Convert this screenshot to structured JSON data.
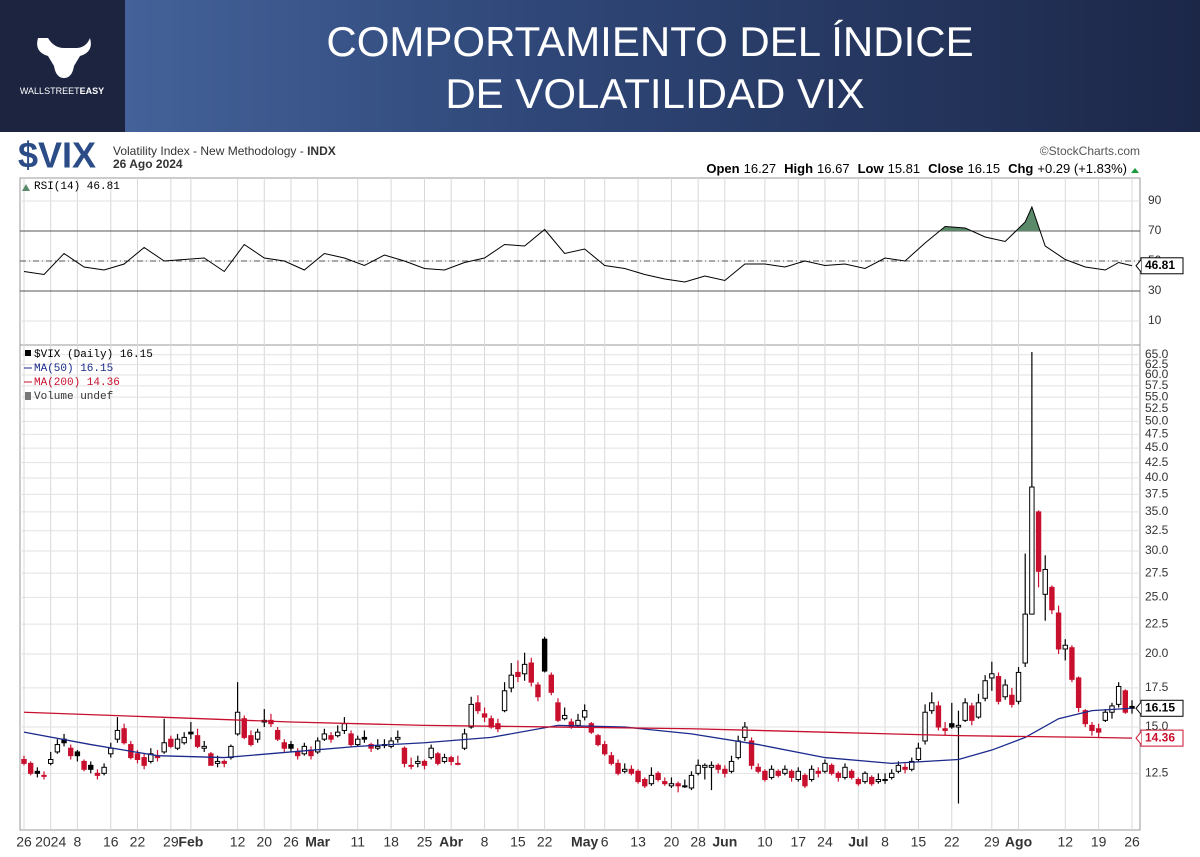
{
  "header": {
    "title_lines": [
      "COMPORTAMIENTO DEL ÍNDICE",
      "DE VOLATILIDAD VIX"
    ],
    "logo_text": "WALLSTREET",
    "logo_text_bold": "EASY"
  },
  "chart_data": {
    "type": "candlestick",
    "symbol": "$VIX",
    "description": "Volatility Index - New Methodology - ",
    "exchange": "INDX",
    "date": "26 Ago 2024",
    "source": "©StockCharts.com",
    "quote": [
      {
        "label": "Open",
        "value": 16.27
      },
      {
        "label": "High",
        "value": 16.67
      },
      {
        "label": "Low",
        "value": 15.81
      },
      {
        "label": "Close",
        "value": 16.15
      },
      {
        "label": "Chg",
        "value": "+0.29 (+1.83%)"
      }
    ],
    "legend": "$VIX (Daily) 16.15",
    "volume_label": "Volume undef",
    "up_color": "#000000",
    "down_color": "#c8102e",
    "log": true,
    "grid": true,
    "xlim": [
      0,
      166
    ],
    "xticks": [
      {
        "value": 0,
        "label": "26"
      },
      {
        "value": 4,
        "label": "2024"
      },
      {
        "value": 8,
        "label": "8"
      },
      {
        "value": 13,
        "label": "16"
      },
      {
        "value": 17,
        "label": "22"
      },
      {
        "value": 22,
        "label": "29"
      },
      {
        "value": 25,
        "label": "Feb"
      },
      {
        "value": 32,
        "label": "12"
      },
      {
        "value": 36,
        "label": "20"
      },
      {
        "value": 40,
        "label": "26"
      },
      {
        "value": 44,
        "label": "Mar"
      },
      {
        "value": 50,
        "label": "11"
      },
      {
        "value": 55,
        "label": "18"
      },
      {
        "value": 60,
        "label": "25"
      },
      {
        "value": 64,
        "label": "Abr"
      },
      {
        "value": 69,
        "label": "8"
      },
      {
        "value": 74,
        "label": "15"
      },
      {
        "value": 78,
        "label": "22"
      },
      {
        "value": 84,
        "label": "May"
      },
      {
        "value": 87,
        "label": "6"
      },
      {
        "value": 92,
        "label": "13"
      },
      {
        "value": 97,
        "label": "20"
      },
      {
        "value": 101,
        "label": "28"
      },
      {
        "value": 105,
        "label": "Jun"
      },
      {
        "value": 111,
        "label": "10"
      },
      {
        "value": 116,
        "label": "17"
      },
      {
        "value": 120,
        "label": "24"
      },
      {
        "value": 125,
        "label": "Jul"
      },
      {
        "value": 129,
        "label": "8"
      },
      {
        "value": 134,
        "label": "15"
      },
      {
        "value": 139,
        "label": "22"
      },
      {
        "value": 145,
        "label": "29"
      },
      {
        "value": 149,
        "label": "Ago"
      },
      {
        "value": 156,
        "label": "12"
      },
      {
        "value": 161,
        "label": "19"
      },
      {
        "value": 166,
        "label": "26"
      }
    ],
    "ylim": [
      10,
      67
    ],
    "yticks": [
      12.5,
      {
        "value": 15,
        "label": "15.0"
      },
      17.5,
      {
        "value": 20,
        "label": "20.0"
      },
      22.5,
      {
        "value": 25,
        "label": "25.0"
      },
      27.5,
      {
        "value": 30,
        "label": "30.0"
      },
      32.5,
      {
        "value": 35,
        "label": "35.0"
      },
      37.5,
      {
        "value": 40,
        "label": "40.0"
      },
      42.5,
      {
        "value": 45,
        "label": "45.0"
      },
      47.5,
      {
        "value": 50,
        "label": "50.0"
      },
      52.5,
      {
        "value": 55,
        "label": "55.0"
      },
      57.5,
      {
        "value": 60,
        "label": "60.0"
      },
      62.5,
      {
        "value": 65,
        "label": "65.0"
      }
    ],
    "candles": [
      [
        13.2,
        13.4,
        12.9,
        13.0
      ],
      [
        13.0,
        13.1,
        12.4,
        12.5
      ],
      [
        12.6,
        12.8,
        12.3,
        12.5
      ],
      [
        12.4,
        12.6,
        12.2,
        12.4
      ],
      [
        13.0,
        13.6,
        12.9,
        13.2
      ],
      [
        13.6,
        14.3,
        13.5,
        14.0
      ],
      [
        14.3,
        14.6,
        13.9,
        14.1
      ],
      [
        13.8,
        14.0,
        13.2,
        13.4
      ],
      [
        13.6,
        13.7,
        13.1,
        13.4
      ],
      [
        13.1,
        13.2,
        12.6,
        12.7
      ],
      [
        12.9,
        13.1,
        12.5,
        12.7
      ],
      [
        12.5,
        12.7,
        12.2,
        12.4
      ],
      [
        12.5,
        13.0,
        12.4,
        12.8
      ],
      [
        13.5,
        14.1,
        13.3,
        13.8
      ],
      [
        14.3,
        15.6,
        14.1,
        14.8
      ],
      [
        14.9,
        15.2,
        14.0,
        14.1
      ],
      [
        14.0,
        14.2,
        13.2,
        13.3
      ],
      [
        13.5,
        13.7,
        13.0,
        13.2
      ],
      [
        13.3,
        13.5,
        12.7,
        12.9
      ],
      [
        13.1,
        13.8,
        13.0,
        13.5
      ],
      [
        13.4,
        13.7,
        13.1,
        13.3
      ],
      [
        13.6,
        15.5,
        13.5,
        14.1
      ],
      [
        14.3,
        14.5,
        13.8,
        13.9
      ],
      [
        13.8,
        14.6,
        13.7,
        14.3
      ],
      [
        14.1,
        14.7,
        14.0,
        14.4
      ],
      [
        14.7,
        15.3,
        14.3,
        14.6
      ],
      [
        14.5,
        14.9,
        13.8,
        13.9
      ],
      [
        13.8,
        14.2,
        13.6,
        13.9
      ],
      [
        13.5,
        13.6,
        12.9,
        12.9
      ],
      [
        13.0,
        13.4,
        12.8,
        13.1
      ],
      [
        13.1,
        13.2,
        12.8,
        13.0
      ],
      [
        13.3,
        14.0,
        13.2,
        13.9
      ],
      [
        14.6,
        17.9,
        14.5,
        15.9
      ],
      [
        15.5,
        15.7,
        14.3,
        14.4
      ],
      [
        14.5,
        14.8,
        13.9,
        14.0
      ],
      [
        14.3,
        14.9,
        14.1,
        14.7
      ],
      [
        15.3,
        16.1,
        15.0,
        15.4
      ],
      [
        15.4,
        15.8,
        15.0,
        15.2
      ],
      [
        14.8,
        15.0,
        14.2,
        14.3
      ],
      [
        14.1,
        14.3,
        13.6,
        13.8
      ],
      [
        14.0,
        14.2,
        13.6,
        13.8
      ],
      [
        13.6,
        13.8,
        13.2,
        13.4
      ],
      [
        13.5,
        14.1,
        13.4,
        13.9
      ],
      [
        13.7,
        13.9,
        13.2,
        13.4
      ],
      [
        13.6,
        14.4,
        13.5,
        14.2
      ],
      [
        14.3,
        14.9,
        14.2,
        14.6
      ],
      [
        14.5,
        14.7,
        14.1,
        14.3
      ],
      [
        14.5,
        15.1,
        14.4,
        14.7
      ],
      [
        14.8,
        15.6,
        14.6,
        15.2
      ],
      [
        14.6,
        14.8,
        13.9,
        14.0
      ],
      [
        14.0,
        14.5,
        13.9,
        14.3
      ],
      [
        14.4,
        14.8,
        14.1,
        14.3
      ],
      [
        14.0,
        14.1,
        13.6,
        13.8
      ],
      [
        13.8,
        14.3,
        13.7,
        13.9
      ],
      [
        14.0,
        14.3,
        13.8,
        14.0
      ],
      [
        13.9,
        14.4,
        13.8,
        14.2
      ],
      [
        14.3,
        14.8,
        14.1,
        14.4
      ],
      [
        13.8,
        13.9,
        12.8,
        13.0
      ],
      [
        12.9,
        13.3,
        12.7,
        12.9
      ],
      [
        13.0,
        13.4,
        12.8,
        13.1
      ],
      [
        13.1,
        13.2,
        12.7,
        12.9
      ],
      [
        13.3,
        14.0,
        13.2,
        13.8
      ],
      [
        13.5,
        13.6,
        12.9,
        13.0
      ],
      [
        13.1,
        13.5,
        13.0,
        13.3
      ],
      [
        13.3,
        13.4,
        12.9,
        13.1
      ],
      [
        13.0,
        13.4,
        12.9,
        13.0
      ],
      [
        13.8,
        14.9,
        13.7,
        14.6
      ],
      [
        15.0,
        16.9,
        14.9,
        16.4
      ],
      [
        16.5,
        17.0,
        15.8,
        16.0
      ],
      [
        15.8,
        16.2,
        15.3,
        15.6
      ],
      [
        15.5,
        15.7,
        14.9,
        15.0
      ],
      [
        15.2,
        15.5,
        14.7,
        14.9
      ],
      [
        16.0,
        17.9,
        15.9,
        17.3
      ],
      [
        17.5,
        19.3,
        17.2,
        18.4
      ],
      [
        18.6,
        19.5,
        17.9,
        18.3
      ],
      [
        18.5,
        20.1,
        18.0,
        19.2
      ],
      [
        19.3,
        19.7,
        17.6,
        17.9
      ],
      [
        17.7,
        17.9,
        16.6,
        16.9
      ],
      [
        21.2,
        21.4,
        18.6,
        18.7
      ],
      [
        18.4,
        18.6,
        17.0,
        17.2
      ],
      [
        16.5,
        16.8,
        15.3,
        15.4
      ],
      [
        15.5,
        16.2,
        15.4,
        15.7
      ],
      [
        15.3,
        15.5,
        14.9,
        15.0
      ],
      [
        15.1,
        15.8,
        15.0,
        15.4
      ],
      [
        15.6,
        16.4,
        15.4,
        16.0
      ],
      [
        15.2,
        15.3,
        14.6,
        14.7
      ],
      [
        14.5,
        14.6,
        13.9,
        14.0
      ],
      [
        14.0,
        14.2,
        13.4,
        13.5
      ],
      [
        13.4,
        13.6,
        12.9,
        13.0
      ],
      [
        13.0,
        13.2,
        12.4,
        12.5
      ],
      [
        12.6,
        13.0,
        12.5,
        12.7
      ],
      [
        12.7,
        12.9,
        12.4,
        12.5
      ],
      [
        12.6,
        12.7,
        12.0,
        12.1
      ],
      [
        12.2,
        12.3,
        11.8,
        11.9
      ],
      [
        12.0,
        12.8,
        11.9,
        12.4
      ],
      [
        12.5,
        12.6,
        12.1,
        12.2
      ],
      [
        12.1,
        12.3,
        11.9,
        12.0
      ],
      [
        11.9,
        12.3,
        11.8,
        12.0
      ],
      [
        12.0,
        12.1,
        11.6,
        11.9
      ],
      [
        11.9,
        12.2,
        11.8,
        11.9
      ],
      [
        11.8,
        12.6,
        11.7,
        12.4
      ],
      [
        12.5,
        13.2,
        12.4,
        12.9
      ],
      [
        12.8,
        13.0,
        12.2,
        12.9
      ],
      [
        12.8,
        13.1,
        11.7,
        12.9
      ],
      [
        12.9,
        13.0,
        12.5,
        12.7
      ],
      [
        12.7,
        12.9,
        12.3,
        12.5
      ],
      [
        12.6,
        13.4,
        12.5,
        13.1
      ],
      [
        13.3,
        14.5,
        13.2,
        14.2
      ],
      [
        14.4,
        15.3,
        14.2,
        15.0
      ],
      [
        14.2,
        14.4,
        12.7,
        12.9
      ],
      [
        12.8,
        13.0,
        12.5,
        12.6
      ],
      [
        12.6,
        12.7,
        12.1,
        12.2
      ],
      [
        12.3,
        12.9,
        12.2,
        12.7
      ],
      [
        12.6,
        12.7,
        12.3,
        12.4
      ],
      [
        12.5,
        12.9,
        12.4,
        12.7
      ],
      [
        12.6,
        12.7,
        12.1,
        12.3
      ],
      [
        12.2,
        12.8,
        12.1,
        12.6
      ],
      [
        12.4,
        12.5,
        11.8,
        11.9
      ],
      [
        12.2,
        12.9,
        12.1,
        12.7
      ],
      [
        12.6,
        12.8,
        12.3,
        12.5
      ],
      [
        12.6,
        13.2,
        12.5,
        13.0
      ],
      [
        12.9,
        13.0,
        12.4,
        12.5
      ],
      [
        12.5,
        12.6,
        12.1,
        12.3
      ],
      [
        12.3,
        13.0,
        12.2,
        12.8
      ],
      [
        12.6,
        12.7,
        12.2,
        12.3
      ],
      [
        12.2,
        12.3,
        11.9,
        12.0
      ],
      [
        12.1,
        12.6,
        12.0,
        12.5
      ],
      [
        12.3,
        12.4,
        11.9,
        12.0
      ],
      [
        12.1,
        12.5,
        12.0,
        12.2
      ],
      [
        12.2,
        12.5,
        12.0,
        12.2
      ],
      [
        12.3,
        12.7,
        12.2,
        12.5
      ],
      [
        12.6,
        13.1,
        12.5,
        12.9
      ],
      [
        12.8,
        13.0,
        12.5,
        12.7
      ],
      [
        12.7,
        13.3,
        12.6,
        13.1
      ],
      [
        13.2,
        14.1,
        13.1,
        13.8
      ],
      [
        14.2,
        16.4,
        14.0,
        15.9
      ],
      [
        16.0,
        17.2,
        15.8,
        16.5
      ],
      [
        16.3,
        16.6,
        14.8,
        15.0
      ],
      [
        14.9,
        15.3,
        14.5,
        14.8
      ],
      [
        15.2,
        16.5,
        14.9,
        15.0
      ],
      [
        15.0,
        16.0,
        11.1,
        15.1
      ],
      [
        15.4,
        16.8,
        15.3,
        16.5
      ],
      [
        16.3,
        16.5,
        15.1,
        15.4
      ],
      [
        15.6,
        17.1,
        15.5,
        16.5
      ],
      [
        16.8,
        18.4,
        16.6,
        18.0
      ],
      [
        18.2,
        19.4,
        17.3,
        18.5
      ],
      [
        18.3,
        18.6,
        16.4,
        16.6
      ],
      [
        16.9,
        18.1,
        16.7,
        17.7
      ],
      [
        17.0,
        17.5,
        16.2,
        16.4
      ],
      [
        16.6,
        19.0,
        16.4,
        18.6
      ],
      [
        19.3,
        29.7,
        19.0,
        23.4
      ],
      [
        23.4,
        65.7,
        23.4,
        38.6
      ],
      [
        35.0,
        35.2,
        26.0,
        27.7
      ],
      [
        25.3,
        29.5,
        22.8,
        27.9
      ],
      [
        26.0,
        26.2,
        23.4,
        23.8
      ],
      [
        23.5,
        24.2,
        20.0,
        20.4
      ],
      [
        20.4,
        21.2,
        19.5,
        20.7
      ],
      [
        20.5,
        20.7,
        17.9,
        18.1
      ],
      [
        18.2,
        18.3,
        15.9,
        16.2
      ],
      [
        16.0,
        16.1,
        15.0,
        15.2
      ],
      [
        15.1,
        15.3,
        14.5,
        14.8
      ],
      [
        14.9,
        15.2,
        14.4,
        14.7
      ],
      [
        15.4,
        16.1,
        15.3,
        15.9
      ],
      [
        15.9,
        16.5,
        15.5,
        16.3
      ],
      [
        16.4,
        17.9,
        16.2,
        17.6
      ],
      [
        17.3,
        17.4,
        15.8,
        15.9
      ],
      [
        16.27,
        16.67,
        15.81,
        16.15
      ]
    ],
    "series": [
      {
        "name": "MA(50) 16.15",
        "color": "#1b2a8c",
        "badge": "16.15",
        "x": [
          0,
          10,
          20,
          30,
          40,
          50,
          60,
          70,
          80,
          90,
          100,
          110,
          120,
          130,
          140,
          145,
          150,
          155,
          160,
          166
        ],
        "values": [
          14.7,
          14.0,
          13.4,
          13.3,
          13.6,
          13.9,
          14.1,
          14.4,
          15.1,
          15.0,
          14.6,
          14.0,
          13.3,
          13.0,
          13.2,
          13.7,
          14.4,
          15.5,
          16.0,
          16.15
        ]
      },
      {
        "name": "MA(200) 14.36",
        "color": "#c8102e",
        "badge": "14.36",
        "x": [
          0,
          20,
          40,
          60,
          80,
          100,
          120,
          140,
          160,
          166
        ],
        "values": [
          15.9,
          15.6,
          15.3,
          15.1,
          15.0,
          14.9,
          14.7,
          14.5,
          14.4,
          14.36
        ]
      }
    ],
    "indicator": {
      "type": "line",
      "name": "RSI(14) 46.81",
      "badge": "46.81",
      "color": "#000000",
      "fill_color": "#5a8a6a",
      "ylim": [
        0,
        100
      ],
      "yticks": [
        10,
        30,
        50,
        70,
        90
      ],
      "bands": [
        30,
        70
      ],
      "midline": 50,
      "x": [
        0,
        3,
        6,
        9,
        12,
        15,
        18,
        21,
        24,
        27,
        30,
        33,
        36,
        39,
        42,
        45,
        48,
        51,
        54,
        57,
        60,
        63,
        66,
        69,
        72,
        75,
        78,
        81,
        84,
        87,
        90,
        93,
        96,
        99,
        102,
        105,
        108,
        111,
        114,
        117,
        120,
        123,
        126,
        129,
        132,
        135,
        138,
        141,
        144,
        147,
        150,
        151,
        153,
        156,
        159,
        162,
        164,
        166
      ],
      "values": [
        43,
        41,
        55,
        46,
        44,
        48,
        59,
        50,
        51,
        52,
        43,
        61,
        52,
        50,
        44,
        55,
        52,
        47,
        54,
        50,
        45,
        44,
        49,
        52,
        61,
        60,
        71,
        55,
        58,
        47,
        45,
        41,
        38,
        36,
        40,
        37,
        48,
        48,
        46,
        50,
        47,
        48,
        45,
        52,
        50,
        62,
        73,
        72,
        66,
        63,
        76,
        86,
        60,
        51,
        46,
        44,
        49,
        46.81
      ]
    }
  }
}
